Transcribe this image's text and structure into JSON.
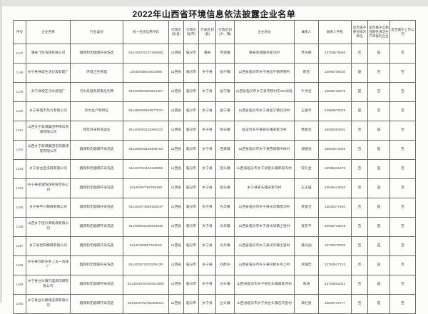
{
  "title": "2022年山西省环境信息依法披露企业名单",
  "table": {
    "headers": [
      "序号",
      "企业名称",
      "行业类别",
      "统一社会信用代码",
      "行政区划(省)",
      "行政区划(市)",
      "行政区划(县)",
      "行政区划(乡、镇)",
      "企业地址",
      "联系人",
      "联系人手机",
      "是否属于重点排污单位",
      "是否属于实施强制性清洁生产审核的企业",
      "是否属于上市公司"
    ],
    "rows": [
      [
        "1147",
        "蒲县飞龙洗煤有限公司",
        "烟煤和无烟煤开采洗选",
        "91410337673728609()",
        "山西省",
        "临汾市",
        "蒲县",
        "克城镇",
        "蒲县克城镇许家沟村",
        "贾天鹏",
        "13703575666",
        "否",
        "是",
        "否"
      ],
      [
        "1148",
        "乡宁县县城生活垃圾处理厂",
        "环境卫生管理",
        "12540935644813886",
        "山西省",
        "临汾市",
        "乡宁县",
        "昌宁镇",
        "山西省临汾市乡宁县昌宁镇寺院村",
        "陈宝",
        "13994759420",
        "是",
        "否",
        "否"
      ],
      [
        "1149",
        "乡宁县城区污水处理厂",
        "污水处理及其再生利用",
        "916100003630521207",
        "山西省",
        "临汾市",
        "乡宁县",
        "昌宁镇",
        "山西省临汾市乡宁县寺院村东325米处",
        "牛洪全",
        "13835725376",
        "是",
        "否",
        "否"
      ],
      [
        "1150",
        "乡宁县城市热力有限公司",
        "热力生产和供应",
        "91145290956267767H",
        "山西省",
        "临汾市",
        "乡宁县",
        "昌宁镇",
        "山西省临汾市乡宁县昌宁镇北湾村",
        "王振华",
        "13663570919",
        "是",
        "否",
        "否"
      ],
      [
        "1151",
        "山西乡宁焦煤集团申南凹洗煤有限公司",
        "煤炭开采和洗选业",
        "911400003134884222",
        "山西省",
        "临汾市",
        "乡宁县",
        "管头镇",
        "临汾市乡宁县管头镇宋家沟村",
        "杨春龙",
        "16935353801",
        "否",
        "是",
        "否"
      ],
      [
        "1152",
        "山西乡宁焦煤集团毛则渠煤炭有限公司",
        "烟煤和无烟煤开采洗选",
        "911400003134508763",
        "山西省",
        "临汾市",
        "乡宁县",
        "西坡镇",
        "山西省临汾市乡宁县西坡镇中垛村",
        "郑维亮",
        "15003572345",
        "否",
        "是",
        "否"
      ],
      [
        "1153",
        "乡宁县古宝洗煤有限公司",
        "烟煤和无烟煤开采洗选",
        "911457291134128958",
        "山西省",
        "临汾市",
        "乡宁县",
        "管头镇",
        "山西省临汾市乡宁县管头镇库家沟村",
        "常礼全",
        "16935345476",
        "否",
        "是",
        "否"
      ],
      [
        "1154",
        "乡宁县星湖洗煤有限责任公司",
        "烟煤和无烟煤开采洗选",
        "91140297796788188",
        "山西省",
        "临汾市",
        "乡宁县",
        "管头镇",
        "乡宁县管头镇宋家沟村",
        "王志强",
        "13546443633",
        "否",
        "是",
        "否"
      ],
      [
        "1155",
        "乡宁县平川精煤有限公司",
        "烟煤和无烟煤开采洗选",
        "91140297486919361P",
        "山西省",
        "临汾市",
        "乡宁县",
        "光华镇",
        "山西省临汾市乡宁县光华镇塔沟村",
        "贺富合",
        "13835377540",
        "否",
        "是",
        "否"
      ],
      [
        "1156",
        "山西乡宁恒升源焦煤有限公司",
        "烟煤和无烟煤开采洗选",
        "911400001330024042",
        "山西省",
        "临汾市",
        "乡宁县",
        "光华镇",
        "山西省临汾市乡宁县光华镇土窑村",
        "连东平",
        "15936723678",
        "否",
        "是",
        "否"
      ],
      [
        "1157",
        "乡宁县世阳精煤有限公司",
        "烟煤和无烟煤开采洗选",
        "91140290667325015",
        "山西省",
        "临汾市",
        "乡宁县",
        "光华镇",
        "山西省临汾市乡宁县光华镇土窑村",
        "薛光灿",
        "15735070003",
        "否",
        "是",
        "否"
      ],
      [
        "1158",
        "乡宁县双鹤乡罗上五一洗煤厂",
        "烟煤和无烟煤开采洗选",
        "91140297767020913P",
        "山西省",
        "临汾市",
        "乡宁县",
        "双鹤乡",
        "山西省临汾市乡宁县双鹤乡罗上村",
        "李国忠",
        "13753527743",
        "否",
        "是",
        "否"
      ],
      [
        "1159",
        "乡宁县台头镇万盛源洗煤有限公司",
        "烟煤和无烟煤开采洗选",
        "92140297MA5K9C390K",
        "山西省",
        "临汾市",
        "乡宁县",
        "台头镇",
        "山西省临汾市乡宁县台头镇富家河村",
        "蒋涛",
        "13703552021",
        "否",
        "是",
        "否"
      ],
      [
        "1160",
        "乡宁县台头鹏城洗煤有限公司",
        "烟煤和无烟煤开采洗选",
        "92140297MA5K96542A",
        "山西省",
        "临汾市",
        "乡宁县",
        "台头镇",
        "山西省临汾市乡宁县台头镇石灰窑村",
        "高红星",
        "18635740777",
        "否",
        "是",
        "否"
      ]
    ]
  }
}
